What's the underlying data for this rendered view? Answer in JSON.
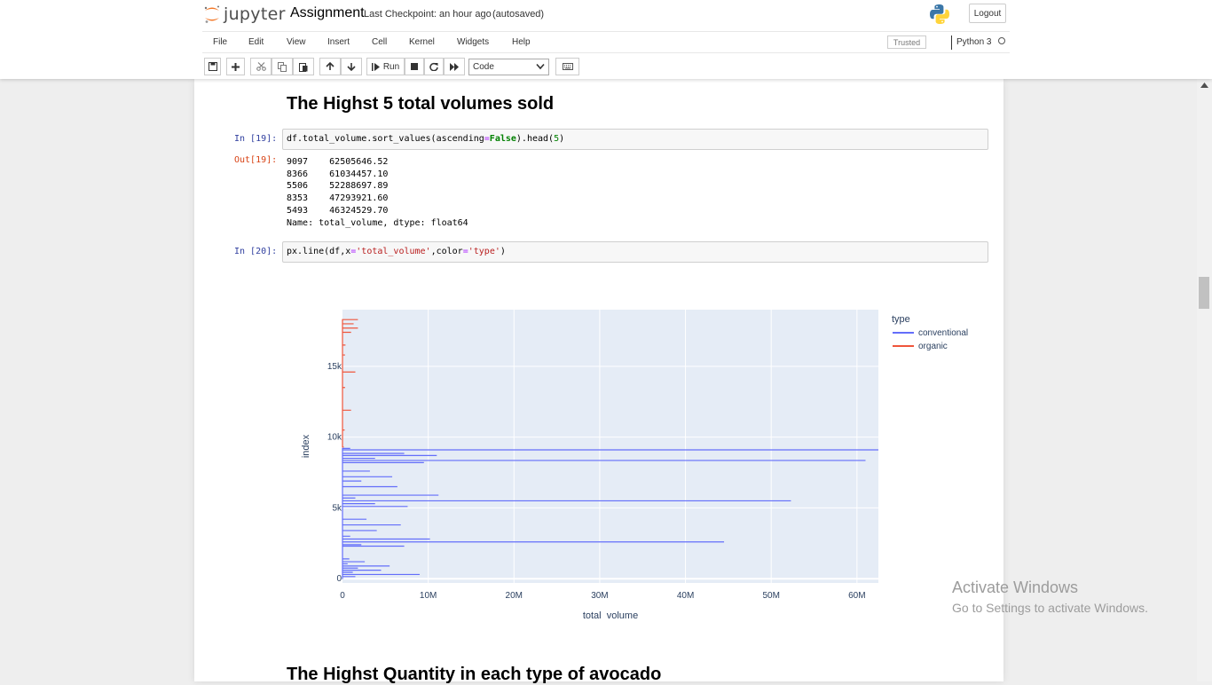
{
  "header": {
    "logo_text": "jupyter",
    "notebook_name": "Assignment",
    "checkpoint": "Last Checkpoint: an hour ago",
    "autosave_status": "(autosaved)",
    "logout_label": "Logout"
  },
  "menu": {
    "items": [
      "File",
      "Edit",
      "View",
      "Insert",
      "Cell",
      "Kernel",
      "Widgets",
      "Help"
    ],
    "trusted_label": "Trusted",
    "kernel_name": "Python 3"
  },
  "toolbar": {
    "run_label": "Run",
    "cell_type": "Code",
    "buttons": [
      "save-icon",
      "plus-icon",
      "scissors-icon",
      "copy-icon",
      "paste-icon",
      "arrow-up-icon",
      "arrow-down-icon",
      "run-icon",
      "stop-icon",
      "restart-icon",
      "fast-forward-icon",
      "keyboard-icon"
    ]
  },
  "notebook": {
    "heading1": "The Highst 5 total volumes sold",
    "cell19": {
      "prompt_in": "In [19]:",
      "code": {
        "p1": "df.total_volume.sort_values(ascending",
        "p2": "=",
        "p3": "False",
        "p4": ").head(",
        "p5": "5",
        "p6": ")"
      },
      "prompt_out": "Out[19]:",
      "output_lines": [
        "9097    62505646.52",
        "8366    61034457.10",
        "5506    52288697.89",
        "8353    47293921.60",
        "5493    46324529.70",
        "Name: total_volume, dtype: float64"
      ]
    },
    "cell20": {
      "prompt_in": "In [20]:",
      "code": {
        "p1": "px.line(df,x",
        "p2": "=",
        "p3": "'total_volume'",
        "p4": ",color",
        "p5": "=",
        "p6": "'type'",
        "p7": ")"
      }
    },
    "heading2": "The Highst Quantity in each type of avocado"
  },
  "chart_data": {
    "type": "line",
    "title": "",
    "xlabel": "total_volume",
    "ylabel": "index",
    "xlim": [
      0,
      62500000
    ],
    "ylim": [
      -300,
      19000
    ],
    "x_ticks": [
      {
        "value": 0,
        "label": "0"
      },
      {
        "value": 10000000,
        "label": "10M"
      },
      {
        "value": 20000000,
        "label": "20M"
      },
      {
        "value": 30000000,
        "label": "30M"
      },
      {
        "value": 40000000,
        "label": "40M"
      },
      {
        "value": 50000000,
        "label": "50M"
      },
      {
        "value": 60000000,
        "label": "60M"
      }
    ],
    "y_ticks": [
      {
        "value": 0,
        "label": "0"
      },
      {
        "value": 5000,
        "label": "5k"
      },
      {
        "value": 10000,
        "label": "10k"
      },
      {
        "value": 15000,
        "label": "15k"
      }
    ],
    "legend_title": "type",
    "legend_position": "top-right",
    "background": "#e5ecf6",
    "series": [
      {
        "name": "conventional",
        "color": "#636efa",
        "points": [
          [
            50000,
            0
          ],
          [
            1500000,
            150
          ],
          [
            9000000,
            300
          ],
          [
            1200000,
            450
          ],
          [
            4500000,
            600
          ],
          [
            1800000,
            750
          ],
          [
            5500000,
            900
          ],
          [
            600000,
            1050
          ],
          [
            2600000,
            1200
          ],
          [
            800000,
            1400
          ],
          [
            7200000,
            2300
          ],
          [
            2200000,
            2400
          ],
          [
            44500000,
            2600
          ],
          [
            10200000,
            2800
          ],
          [
            900000,
            3000
          ],
          [
            4000000,
            3400
          ],
          [
            6800000,
            3800
          ],
          [
            2800000,
            4200
          ],
          [
            7600000,
            5100
          ],
          [
            3800000,
            5300
          ],
          [
            52300000,
            5500
          ],
          [
            1500000,
            5700
          ],
          [
            11200000,
            5900
          ],
          [
            6400000,
            6500
          ],
          [
            2200000,
            6900
          ],
          [
            5800000,
            7200
          ],
          [
            3200000,
            7600
          ],
          [
            9500000,
            8200
          ],
          [
            61000000,
            8350
          ],
          [
            3800000,
            8500
          ],
          [
            11000000,
            8700
          ],
          [
            7200000,
            8850
          ],
          [
            62500000,
            9100
          ],
          [
            900000,
            9200
          ]
        ]
      },
      {
        "name": "organic",
        "color": "#ef553b",
        "points": [
          [
            150000,
            9300
          ],
          [
            250000,
            10500
          ],
          [
            1000000,
            11900
          ],
          [
            300000,
            13500
          ],
          [
            1500000,
            14600
          ],
          [
            300000,
            15800
          ],
          [
            350000,
            16500
          ],
          [
            1000000,
            17400
          ],
          [
            1800000,
            17700
          ],
          [
            1300000,
            18000
          ],
          [
            1800000,
            18300
          ]
        ]
      }
    ]
  }
}
